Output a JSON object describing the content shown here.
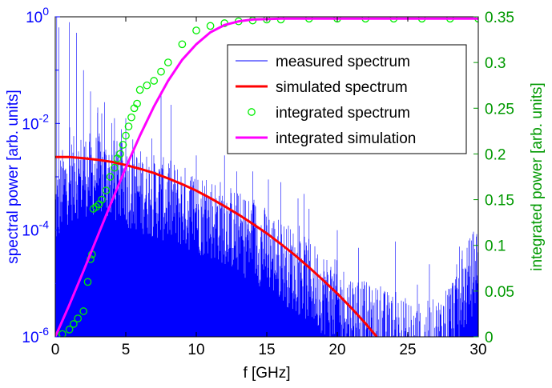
{
  "chart_data": {
    "type": "line",
    "xlabel": "f [GHz]",
    "ylabel_left": "spectral power [arb. units]",
    "ylabel_right": "integrated power [arb. units]",
    "xlim": [
      0,
      30
    ],
    "ylim_left": [
      1e-06,
      1
    ],
    "ylim_right": [
      0,
      0.35
    ],
    "yscale_left": "log",
    "x_ticks": [
      0,
      5,
      10,
      15,
      20,
      25,
      30
    ],
    "y_left_ticks": [
      {
        "base": "10",
        "exp": "0",
        "value": 1
      },
      {
        "base": "10",
        "exp": "-2",
        "value": 0.01
      },
      {
        "base": "10",
        "exp": "-4",
        "value": 0.0001
      },
      {
        "base": "10",
        "exp": "-6",
        "value": 1e-06
      }
    ],
    "y_right_ticks": [
      "0",
      "0.05",
      "0.1",
      "0.15",
      "0.2",
      "0.25",
      "0.3",
      "0.35"
    ],
    "legend_position": "top-right",
    "colors": {
      "measured": "#0000ff",
      "simulated": "#ff0000",
      "integrated_spectrum": "#00ee00",
      "integrated_simulation": "#ff00ff",
      "left_axis": "#0000ff",
      "right_axis": "#009900"
    },
    "series": [
      {
        "name": "measured spectrum",
        "axis": "left",
        "style": "line",
        "envelope_x": [
          0,
          0.5,
          1,
          2,
          3,
          4,
          5,
          6,
          7,
          8,
          9,
          10,
          11,
          12,
          13,
          14,
          15,
          16,
          17,
          18,
          19,
          20,
          21,
          22,
          23,
          24,
          25,
          26,
          27,
          28,
          29,
          30
        ],
        "envelope_log10_y": [
          -3.9,
          -3.5,
          -3.3,
          -3.2,
          -3.2,
          -3.3,
          -3.4,
          -3.5,
          -3.6,
          -3.7,
          -3.8,
          -3.9,
          -4.0,
          -4.1,
          -4.3,
          -4.4,
          -4.6,
          -4.8,
          -5.0,
          -5.2,
          -5.4,
          -5.6,
          -5.8,
          -6.0,
          -6.1,
          -6.2,
          -6.3,
          -6.4,
          -6.3,
          -5.9,
          -5.4,
          -4.8
        ],
        "peaks": [
          {
            "x": 0.1,
            "log10_y": 0.0
          },
          {
            "x": 0.25,
            "log10_y": -0.2
          },
          {
            "x": 1.0,
            "log10_y": -0.1
          },
          {
            "x": 1.5,
            "log10_y": -0.3
          },
          {
            "x": 2.0,
            "log10_y": -1.0
          },
          {
            "x": 2.5,
            "log10_y": -1.4
          },
          {
            "x": 3.0,
            "log10_y": -1.8
          },
          {
            "x": 3.5,
            "log10_y": -1.6
          },
          {
            "x": 4.2,
            "log10_y": -1.9
          },
          {
            "x": 5.0,
            "log10_y": -1.9
          },
          {
            "x": 5.5,
            "log10_y": -2.3
          },
          {
            "x": 7.5,
            "log10_y": -1.4
          },
          {
            "x": 10.0,
            "log10_y": -2.6
          },
          {
            "x": 12.0,
            "log10_y": -2.6
          },
          {
            "x": 14.0,
            "log10_y": -2.9
          },
          {
            "x": 16.0,
            "log10_y": -3.1
          },
          {
            "x": 18.0,
            "log10_y": -3.6
          },
          {
            "x": 20.0,
            "log10_y": -4.0
          }
        ]
      },
      {
        "name": "simulated spectrum",
        "axis": "left",
        "style": "line",
        "x": [
          0,
          1,
          2,
          3,
          4,
          5,
          6,
          7,
          8,
          9,
          10,
          11,
          12,
          13,
          14,
          15,
          16,
          17,
          18,
          19,
          20,
          21,
          22,
          22.8
        ],
        "log10_y": [
          -2.63,
          -2.63,
          -2.65,
          -2.68,
          -2.72,
          -2.78,
          -2.85,
          -2.93,
          -3.03,
          -3.14,
          -3.26,
          -3.4,
          -3.55,
          -3.71,
          -3.88,
          -4.06,
          -4.26,
          -4.47,
          -4.7,
          -4.94,
          -5.19,
          -5.46,
          -5.75,
          -6.0
        ]
      },
      {
        "name": "integrated spectrum",
        "axis": "right",
        "style": "markers",
        "x": [
          0.1,
          0.5,
          1.0,
          1.3,
          1.6,
          2.0,
          2.3,
          2.5,
          2.6,
          2.7,
          2.9,
          3.1,
          3.3,
          3.6,
          3.9,
          4.2,
          4.4,
          4.6,
          4.8,
          5.0,
          5.2,
          5.4,
          5.6,
          5.8,
          6.0,
          6.5,
          7.0,
          7.5,
          8.0,
          9.0,
          10.0,
          11.0,
          12.0,
          13.0,
          14.0,
          15.0,
          16.0,
          18.0,
          20.0,
          22.0,
          24.0,
          26.0,
          28.0,
          30.0
        ],
        "y": [
          0.0,
          0.003,
          0.008,
          0.014,
          0.02,
          0.028,
          0.06,
          0.085,
          0.09,
          0.14,
          0.142,
          0.145,
          0.15,
          0.16,
          0.175,
          0.185,
          0.195,
          0.2,
          0.21,
          0.22,
          0.23,
          0.24,
          0.25,
          0.255,
          0.27,
          0.275,
          0.28,
          0.29,
          0.3,
          0.32,
          0.335,
          0.34,
          0.343,
          0.345,
          0.346,
          0.347,
          0.347,
          0.348,
          0.348,
          0.348,
          0.348,
          0.348,
          0.348,
          0.348
        ]
      },
      {
        "name": "integrated simulation",
        "axis": "right",
        "style": "line",
        "x": [
          0,
          1,
          2,
          3,
          4,
          5,
          6,
          7,
          8,
          9,
          10,
          11,
          12,
          13,
          14,
          16,
          18,
          20,
          22,
          24,
          26,
          28,
          30
        ],
        "y": [
          0.0,
          0.035,
          0.072,
          0.11,
          0.148,
          0.185,
          0.22,
          0.252,
          0.28,
          0.303,
          0.32,
          0.333,
          0.341,
          0.345,
          0.347,
          0.348,
          0.348,
          0.348,
          0.348,
          0.348,
          0.348,
          0.348,
          0.348
        ]
      }
    ]
  }
}
